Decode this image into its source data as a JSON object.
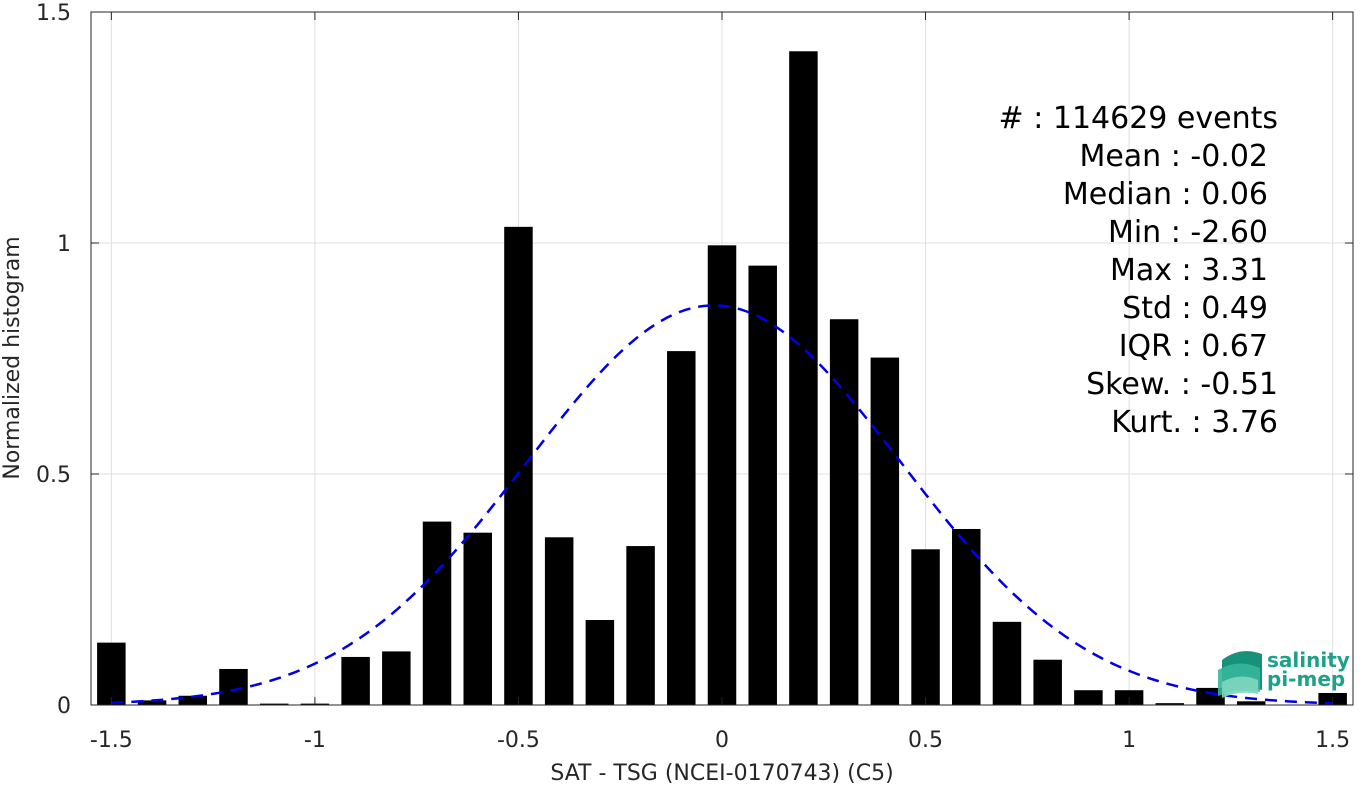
{
  "chart_data": {
    "type": "bar",
    "xlabel": "SAT - TSG (NCEI-0170743) (C5)",
    "ylabel": "Normalized histogram",
    "xlim": [
      -1.55,
      1.55
    ],
    "ylim": [
      0,
      1.5
    ],
    "xticks": [
      -1.5,
      -1,
      -0.5,
      0,
      0.5,
      1,
      1.5
    ],
    "xtick_labels": [
      "-1.5",
      "-1",
      "-0.5",
      "0",
      "0.5",
      "1",
      "1.5"
    ],
    "yticks": [
      0,
      0.5,
      1,
      1.5
    ],
    "ytick_labels": [
      "0",
      "0.5",
      "1",
      "1.5"
    ],
    "grid": true,
    "bar_width": 0.07,
    "x": [
      -1.5,
      -1.4,
      -1.3,
      -1.2,
      -1.1,
      -1.0,
      -0.9,
      -0.8,
      -0.7,
      -0.6,
      -0.5,
      -0.4,
      -0.3,
      -0.2,
      -0.1,
      0.0,
      0.1,
      0.2,
      0.3,
      0.4,
      0.5,
      0.6,
      0.7,
      0.8,
      0.9,
      1.0,
      1.1,
      1.2,
      1.3,
      1.4,
      1.5
    ],
    "values": [
      0.135,
      0.01,
      0.02,
      0.078,
      0.003,
      0.003,
      0.104,
      0.116,
      0.397,
      0.373,
      1.035,
      0.363,
      0.184,
      0.344,
      0.766,
      0.995,
      0.951,
      1.415,
      0.835,
      0.752,
      0.337,
      0.381,
      0.18,
      0.098,
      0.032,
      0.032,
      0.004,
      0.037,
      0.008,
      0.0,
      0.026
    ],
    "bar_color": "#000000",
    "fit_curve": {
      "style": "dashed",
      "color": "#0000e6",
      "mean": -0.02,
      "std": 0.46,
      "peak": 0.865,
      "x_range": [
        -1.5,
        1.5
      ]
    },
    "stats": [
      "#  : 114629 events",
      "Mean : -0.02",
      "Median : 0.06",
      "Min : -2.60",
      "Max : 3.31",
      "Std : 0.49",
      "IQR : 0.67",
      "Skew. : -0.51",
      "Kurt. : 3.76"
    ]
  },
  "logo": {
    "line1": "salinity",
    "line2": "pi-mep",
    "icon": "wave-logo-icon",
    "color": "#1fa08a"
  }
}
